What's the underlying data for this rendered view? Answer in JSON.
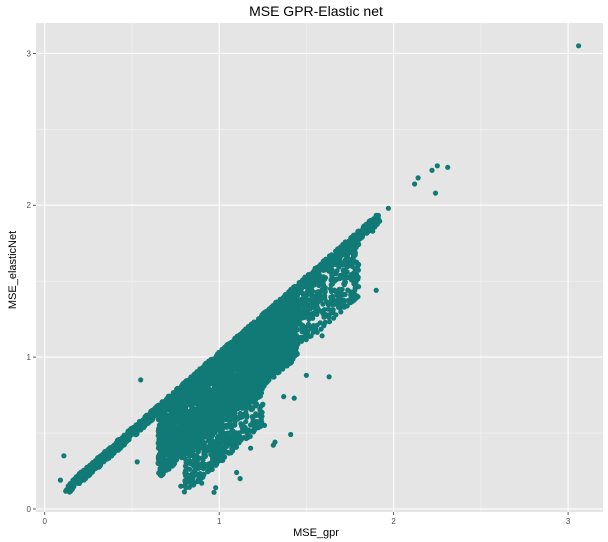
{
  "chart_data": {
    "type": "scatter",
    "title": "MSE GPR-Elastic net",
    "xlabel": "MSE_gpr",
    "ylabel": "MSE_elasticNet",
    "xlim": [
      -0.05,
      3.2
    ],
    "ylim": [
      -0.02,
      3.2
    ],
    "xticks": [
      0,
      1,
      2,
      3
    ],
    "yticks": [
      0,
      1,
      2,
      3
    ],
    "xtick_labels": [
      "0",
      "1",
      "2",
      "3"
    ],
    "ytick_labels": [
      "0",
      "1",
      "2",
      "3"
    ],
    "grid": true,
    "point_color": "#117A76",
    "panel_color": "#E5E5E5",
    "points": [
      {
        "x": 3.06,
        "y": 3.05
      },
      {
        "x": 2.25,
        "y": 2.26
      },
      {
        "x": 2.31,
        "y": 2.25
      },
      {
        "x": 2.22,
        "y": 2.23
      },
      {
        "x": 2.14,
        "y": 2.18
      },
      {
        "x": 2.12,
        "y": 2.14
      },
      {
        "x": 2.24,
        "y": 2.08
      },
      {
        "x": 1.97,
        "y": 1.98
      },
      {
        "x": 1.9,
        "y": 1.92
      },
      {
        "x": 1.9,
        "y": 1.44
      },
      {
        "x": 1.55,
        "y": 1.4
      },
      {
        "x": 1.4,
        "y": 1.36
      },
      {
        "x": 1.88,
        "y": 1.83
      },
      {
        "x": 1.3,
        "y": 1.32
      },
      {
        "x": 1.46,
        "y": 1.23
      },
      {
        "x": 1.59,
        "y": 1.14
      },
      {
        "x": 1.5,
        "y": 0.88
      },
      {
        "x": 1.63,
        "y": 0.87
      },
      {
        "x": 1.43,
        "y": 0.73
      },
      {
        "x": 1.25,
        "y": 0.69
      },
      {
        "x": 1.37,
        "y": 0.74
      },
      {
        "x": 1.26,
        "y": 0.55
      },
      {
        "x": 1.32,
        "y": 0.44
      },
      {
        "x": 1.31,
        "y": 0.42
      },
      {
        "x": 1.41,
        "y": 0.49
      },
      {
        "x": 0.55,
        "y": 0.85
      },
      {
        "x": 0.11,
        "y": 0.35
      },
      {
        "x": 0.09,
        "y": 0.19
      },
      {
        "x": 0.53,
        "y": 0.31
      },
      {
        "x": 0.65,
        "y": 0.3
      },
      {
        "x": 0.85,
        "y": 0.2
      },
      {
        "x": 0.98,
        "y": 0.14
      },
      {
        "x": 0.97,
        "y": 0.11
      },
      {
        "x": 0.9,
        "y": 0.17
      },
      {
        "x": 0.78,
        "y": 0.15
      },
      {
        "x": 1.1,
        "y": 0.24
      },
      {
        "x": 1.12,
        "y": 0.2
      },
      {
        "x": 1.18,
        "y": 0.4
      },
      {
        "x": 1.02,
        "y": 0.32
      },
      {
        "x": 0.87,
        "y": 0.28
      }
    ],
    "dense_bands": [
      {
        "x_from": 0.12,
        "x_to": 1.92,
        "n": 1400,
        "y_low_offset": -0.035,
        "y_high_offset": 0.035
      },
      {
        "x_from": 0.65,
        "x_to": 1.45,
        "n": 2600,
        "y_low_offset": -0.45,
        "y_high_offset": 0.02
      },
      {
        "x_from": 0.8,
        "x_to": 1.25,
        "n": 700,
        "y_low_offset": -0.7,
        "y_high_offset": -0.25
      },
      {
        "x_from": 1.2,
        "x_to": 1.8,
        "n": 700,
        "y_low_offset": -0.4,
        "y_high_offset": 0.0
      }
    ]
  }
}
